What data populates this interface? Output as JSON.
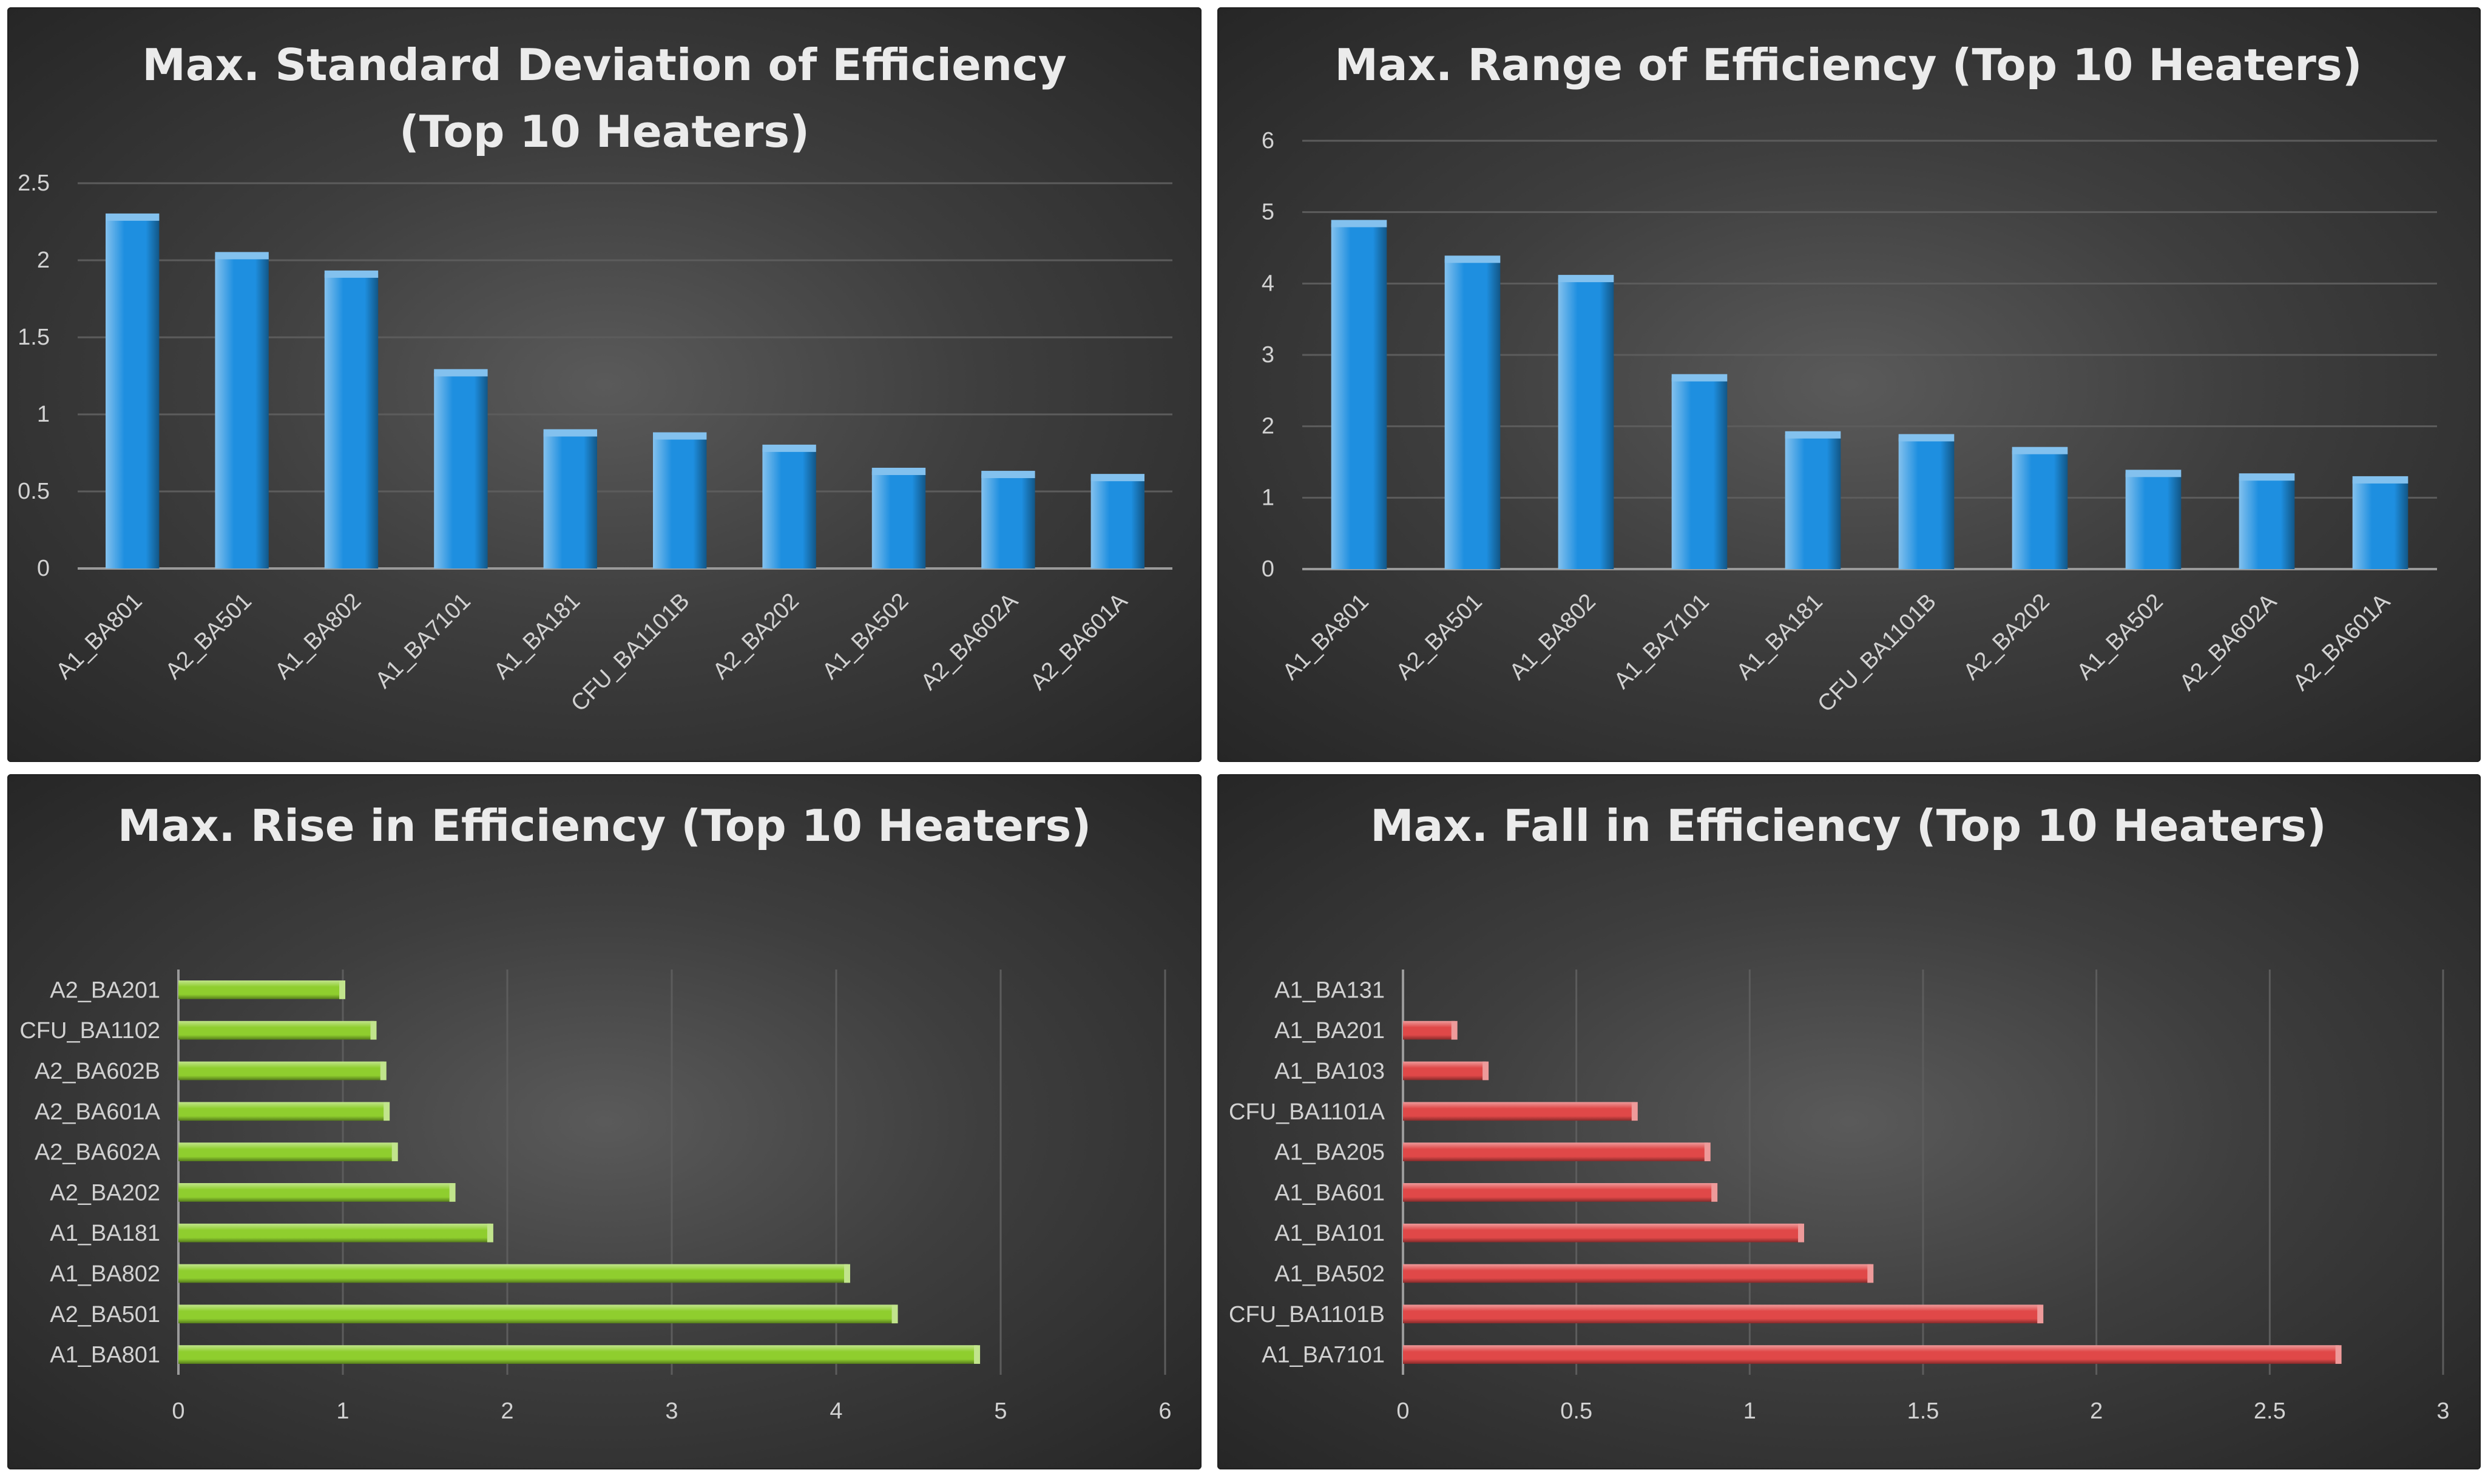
{
  "chart_data": [
    {
      "type": "bar",
      "orientation": "vertical",
      "title_lines": [
        "Max. Standard Deviation of Efficiency",
        "(Top 10 Heaters)"
      ],
      "categories": [
        "A1_BA801",
        "A2_BA501",
        "A1_BA802",
        "A1_BA7101",
        "A1_BA181",
        "CFU_BA1101B",
        "A2_BA202",
        "A1_BA502",
        "A2_BA602A",
        "A2_BA601A"
      ],
      "values": [
        2.28,
        2.03,
        1.91,
        1.27,
        0.88,
        0.86,
        0.78,
        0.63,
        0.61,
        0.59
      ],
      "ylim": [
        0,
        2.5
      ],
      "ticks": [
        "0",
        "0.5",
        "1",
        "1.5",
        "2",
        "2.5"
      ],
      "tick_values": [
        0,
        0.5,
        1,
        1.5,
        2,
        2.5
      ],
      "bar_color": "#1e8fe0",
      "grid": true
    },
    {
      "type": "bar",
      "orientation": "vertical",
      "title_lines": [
        "Max. Range of Efficiency (Top 10 Heaters)"
      ],
      "categories": [
        "A1_BA801",
        "A2_BA501",
        "A1_BA802",
        "A1_BA7101",
        "A1_BA181",
        "CFU_BA1101B",
        "A2_BA202",
        "A1_BA502",
        "A2_BA602A",
        "A2_BA601A"
      ],
      "values": [
        4.84,
        4.34,
        4.07,
        2.68,
        1.88,
        1.84,
        1.66,
        1.34,
        1.29,
        1.25
      ],
      "ylim": [
        0,
        6
      ],
      "ticks": [
        "0",
        "1",
        "2",
        "3",
        "4",
        "5",
        "6"
      ],
      "tick_values": [
        0,
        1,
        2,
        3,
        4,
        5,
        6
      ],
      "bar_color": "#1e8fe0",
      "grid": true
    },
    {
      "type": "bar",
      "orientation": "horizontal",
      "title_lines": [
        "Max. Rise in Efficiency (Top 10 Heaters)"
      ],
      "categories": [
        "A2_BA201",
        "CFU_BA1102",
        "A2_BA602B",
        "A2_BA601A",
        "A2_BA602A",
        "A2_BA202",
        "A1_BA181",
        "A1_BA802",
        "A2_BA501",
        "A1_BA801"
      ],
      "values": [
        1.0,
        1.19,
        1.25,
        1.27,
        1.32,
        1.67,
        1.9,
        4.07,
        4.36,
        4.86
      ],
      "xlim": [
        0,
        6
      ],
      "ticks": [
        "0",
        "1",
        "2",
        "3",
        "4",
        "5",
        "6"
      ],
      "tick_values": [
        0,
        1,
        2,
        3,
        4,
        5,
        6
      ],
      "bar_color": "#8fce2e",
      "grid": true
    },
    {
      "type": "bar",
      "orientation": "horizontal",
      "title_lines": [
        "Max. Fall in Efficiency (Top 10 Heaters)"
      ],
      "categories": [
        "A1_BA131",
        "A1_BA201",
        "A1_BA103",
        "CFU_BA1101A",
        "A1_BA205",
        "A1_BA601",
        "A1_BA101",
        "A1_BA502",
        "CFU_BA1101B",
        "A1_BA7101"
      ],
      "values": [
        0,
        0.15,
        0.24,
        0.67,
        0.88,
        0.9,
        1.15,
        1.35,
        1.84,
        2.7
      ],
      "xlim": [
        0,
        3
      ],
      "ticks": [
        "0",
        "0.5",
        "1",
        "1.5",
        "2",
        "2.5",
        "3"
      ],
      "tick_values": [
        0,
        0.5,
        1,
        1.5,
        2,
        2.5,
        3
      ],
      "bar_color": "#e04848",
      "grid": true
    }
  ]
}
